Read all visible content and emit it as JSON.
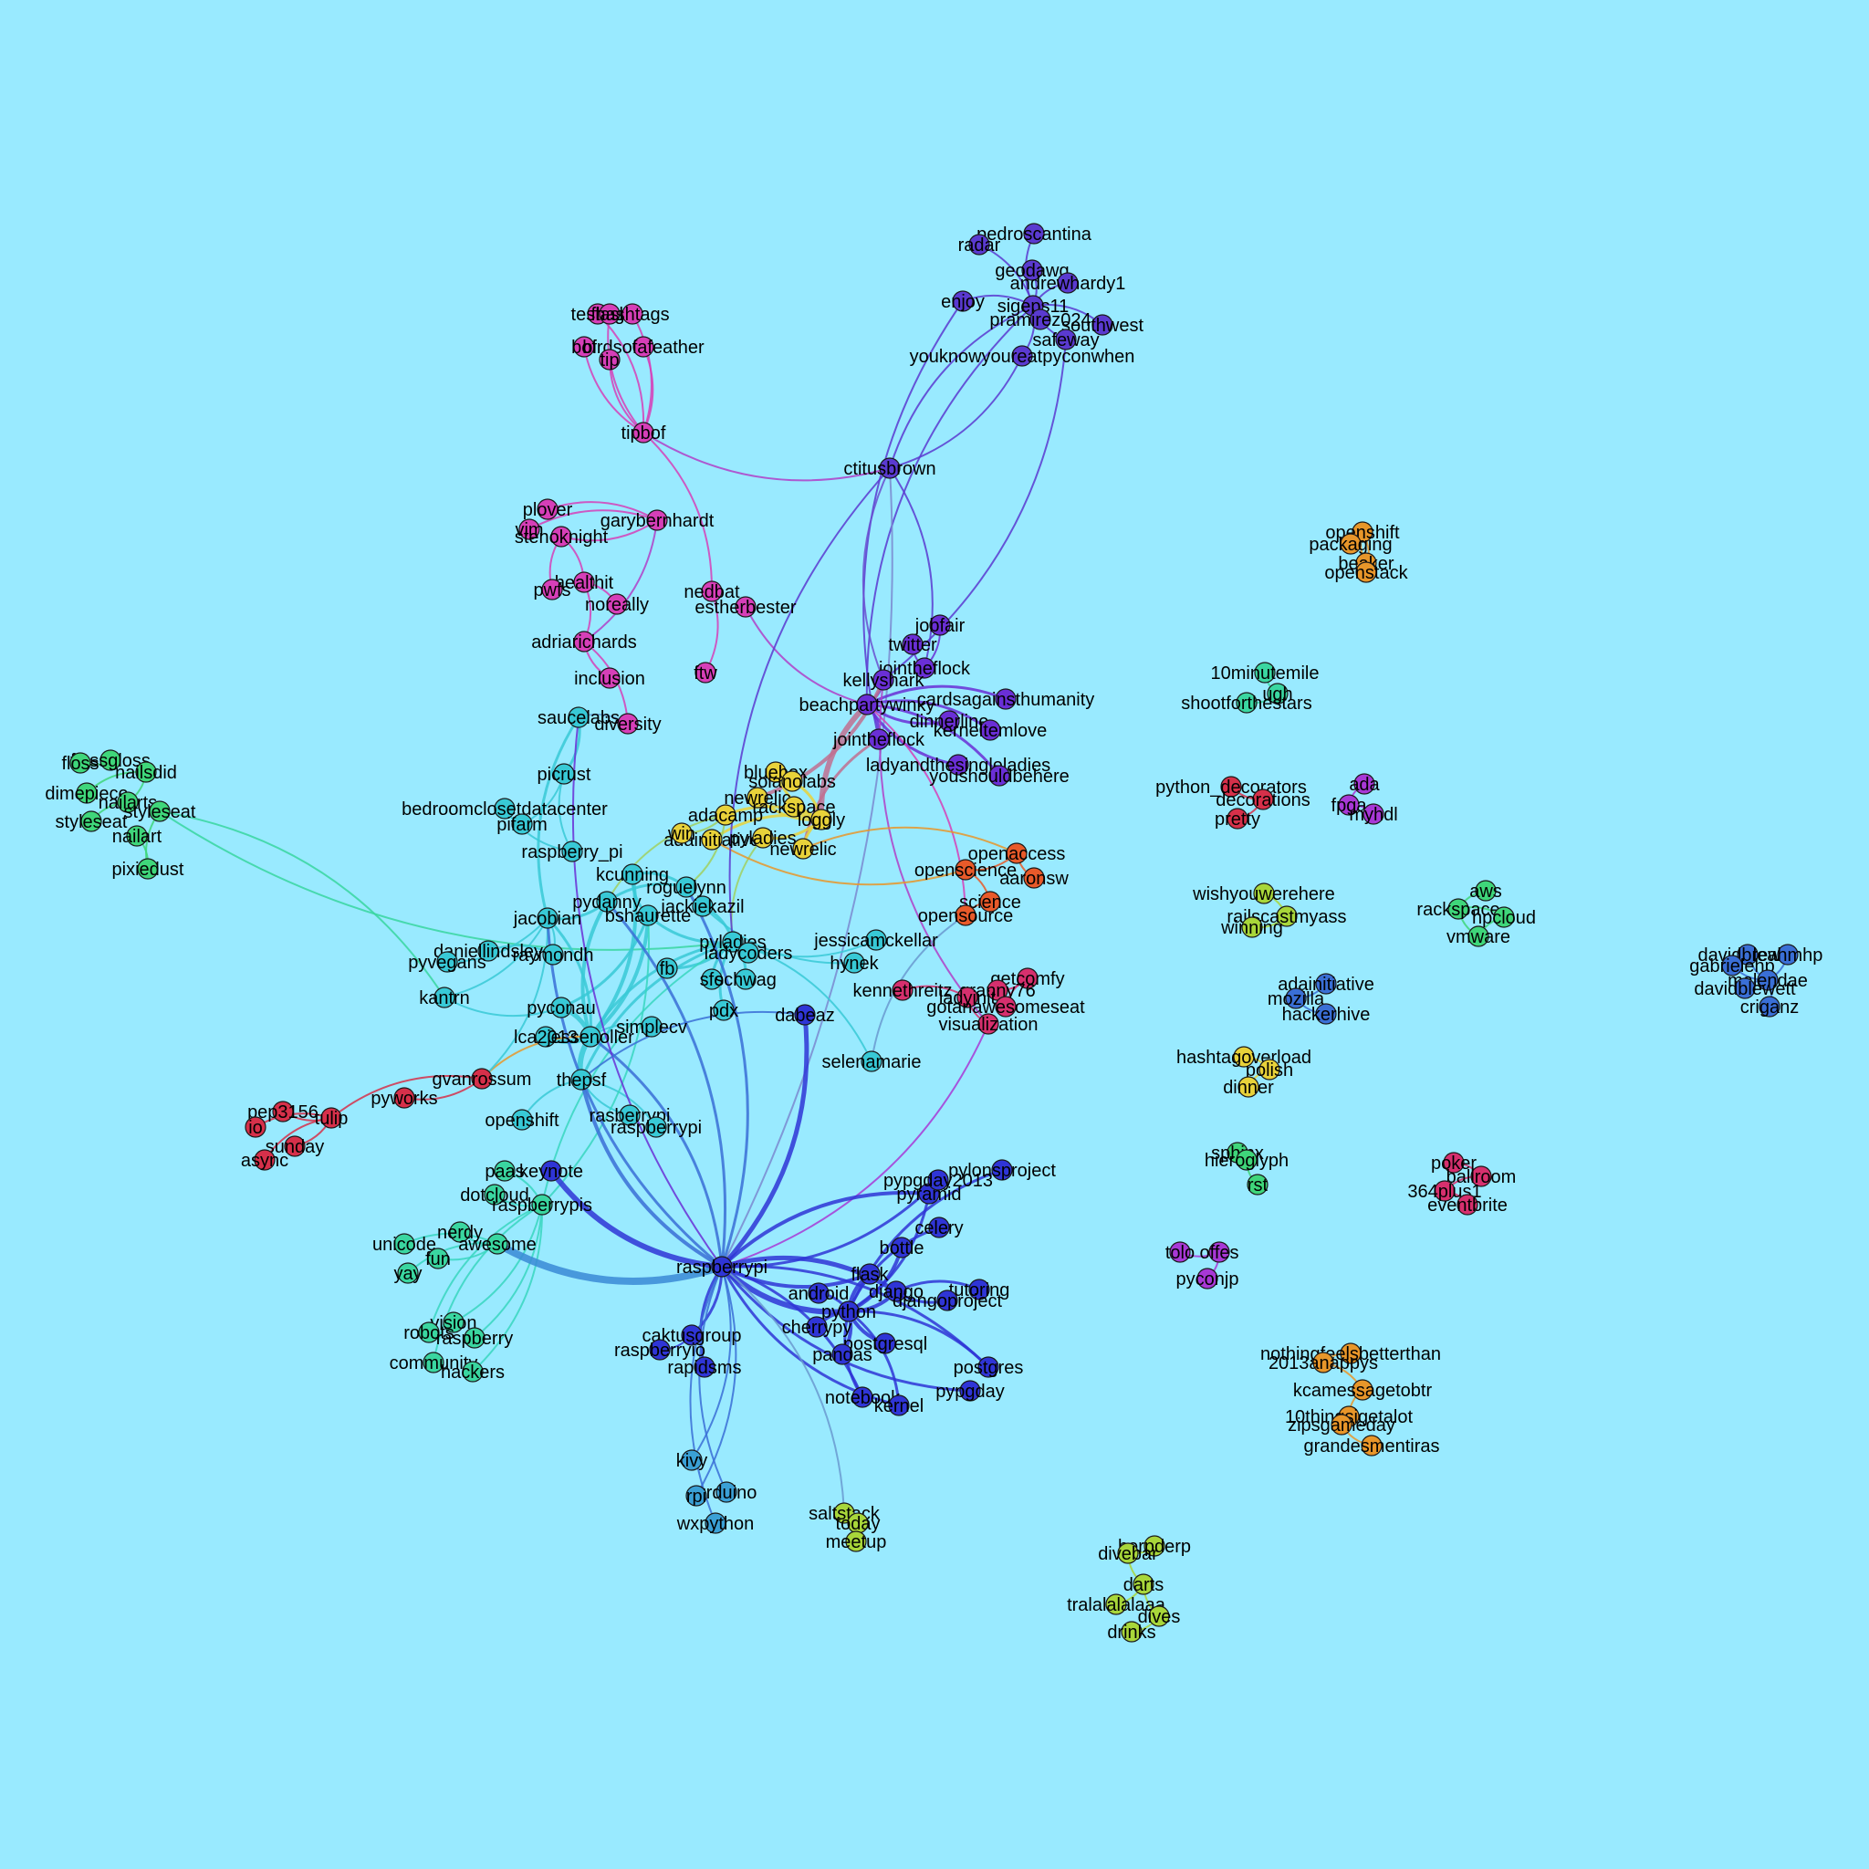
{
  "background": "#99eaff",
  "node_colors": {
    "pink": "#d63fb8",
    "purple": "#6a2fd6",
    "violet": "#5a3ad0",
    "yellow": "#e8d23a",
    "teal": "#38c9d6",
    "green": "#3fd67a",
    "red": "#d6304a",
    "blue": "#2f35d6",
    "lightblue": "#3aa0d6",
    "lime": "#a8d63a",
    "orange": "#e8962a",
    "magenta": "#a838d6",
    "crimson": "#d6306e",
    "midblue": "#3a6fd6",
    "orangered": "#e85a2a",
    "seafoam": "#3ad6a0"
  },
  "nodes": [
    {
      "id": "pedroscantina",
      "label": "pedroscantina",
      "c": "violet"
    },
    {
      "id": "radar",
      "label": "radar",
      "c": "violet"
    },
    {
      "id": "geodawg",
      "label": "geodawg",
      "c": "violet"
    },
    {
      "id": "andrewhardy1",
      "label": "andrewhardy1",
      "c": "violet"
    },
    {
      "id": "enjoy",
      "label": "enjoy",
      "c": "violet"
    },
    {
      "id": "sigeps11",
      "label": "sigeps11",
      "c": "violet"
    },
    {
      "id": "pramirez024",
      "label": "pramirez024",
      "c": "violet"
    },
    {
      "id": "southwest",
      "label": "southwest",
      "c": "violet"
    },
    {
      "id": "safeway",
      "label": "safeway",
      "c": "violet"
    },
    {
      "id": "youknowyoureatpyconwhen",
      "label": "youknowyoureatpyconwhen",
      "c": "violet"
    },
    {
      "id": "ctitusbrown",
      "label": "ctitusbrown",
      "c": "violet"
    },
    {
      "id": "testing",
      "label": "testing",
      "c": "pink"
    },
    {
      "id": "flask_p",
      "label": "flask",
      "c": "pink"
    },
    {
      "id": "hashtags",
      "label": "hashtags",
      "c": "pink"
    },
    {
      "id": "bof",
      "label": "bof",
      "c": "pink"
    },
    {
      "id": "birdsofafeather",
      "label": "birdsofafeather",
      "c": "pink"
    },
    {
      "id": "tip",
      "label": "tip",
      "c": "pink"
    },
    {
      "id": "tipbof",
      "label": "tipbof",
      "c": "pink"
    },
    {
      "id": "plover",
      "label": "plover",
      "c": "pink"
    },
    {
      "id": "garybernhardt",
      "label": "garybernhardt",
      "c": "pink"
    },
    {
      "id": "vim",
      "label": "vim",
      "c": "pink"
    },
    {
      "id": "stenoknight",
      "label": "stenoknight",
      "c": "pink"
    },
    {
      "id": "healthit",
      "label": "healthit",
      "c": "pink"
    },
    {
      "id": "pwfs",
      "label": "pwfs",
      "c": "pink"
    },
    {
      "id": "noreally",
      "label": "noreally",
      "c": "pink"
    },
    {
      "id": "nedbat",
      "label": "nedbat",
      "c": "pink"
    },
    {
      "id": "estherbester",
      "label": "estherbester",
      "c": "pink"
    },
    {
      "id": "adriarichards",
      "label": "adriarichards",
      "c": "pink"
    },
    {
      "id": "inclusion",
      "label": "inclusion",
      "c": "pink"
    },
    {
      "id": "ftw",
      "label": "ftw",
      "c": "pink"
    },
    {
      "id": "diversity",
      "label": "diversity",
      "c": "pink"
    },
    {
      "id": "jobfair",
      "label": "jobfair",
      "c": "purple"
    },
    {
      "id": "twitter",
      "label": "twitter",
      "c": "purple"
    },
    {
      "id": "jointheflock",
      "label": "jointheflock",
      "c": "purple"
    },
    {
      "id": "kellyshark",
      "label": "kellyshark",
      "c": "purple"
    },
    {
      "id": "cardsagainsthumanity",
      "label": "cardsagainsthumanity",
      "c": "purple"
    },
    {
      "id": "beachpartywinky",
      "label": "beachpartywinky",
      "c": "purple"
    },
    {
      "id": "dinnerline",
      "label": "dinnerline",
      "c": "purple"
    },
    {
      "id": "kerneltemlove",
      "label": "kerneltemlove",
      "c": "purple"
    },
    {
      "id": "jointheflock2",
      "label": "jointheflock",
      "c": "purple"
    },
    {
      "id": "ladyandthesingleladies",
      "label": "ladyandthesingleladies",
      "c": "purple"
    },
    {
      "id": "youshouldbehere",
      "label": "youshouldbehere",
      "c": "purple"
    },
    {
      "id": "bluebox",
      "label": "bluebox",
      "c": "yellow"
    },
    {
      "id": "solanolabs",
      "label": "solanolabs",
      "c": "yellow"
    },
    {
      "id": "newrelic",
      "label": "newrelic",
      "c": "yellow"
    },
    {
      "id": "adacamp",
      "label": "adacamp",
      "c": "yellow"
    },
    {
      "id": "rackspace",
      "label": "rackspace",
      "c": "yellow"
    },
    {
      "id": "loggly",
      "label": "loggly",
      "c": "yellow"
    },
    {
      "id": "adainitiative",
      "label": "adainitiative",
      "c": "yellow"
    },
    {
      "id": "pyladies_y",
      "label": "pyladies",
      "c": "yellow"
    },
    {
      "id": "newrelic2",
      "label": "newrelic",
      "c": "yellow"
    },
    {
      "id": "win",
      "label": "win",
      "c": "yellow"
    },
    {
      "id": "flossgloss",
      "label": "flossgloss",
      "c": "green"
    },
    {
      "id": "floss",
      "label": "floss",
      "c": "green"
    },
    {
      "id": "nailsdid",
      "label": "nailsdid",
      "c": "green"
    },
    {
      "id": "dimepiece",
      "label": "dimepiece",
      "c": "green"
    },
    {
      "id": "nailarts",
      "label": "nailarts",
      "c": "green"
    },
    {
      "id": "styleseat",
      "label": "styleseat",
      "c": "green"
    },
    {
      "id": "styleseat2",
      "label": "styleseat",
      "c": "green"
    },
    {
      "id": "nailart",
      "label": "nailart",
      "c": "green"
    },
    {
      "id": "pixiedust",
      "label": "pixiedust",
      "c": "green"
    },
    {
      "id": "saucelabs",
      "label": "saucelabs",
      "c": "teal"
    },
    {
      "id": "picrust",
      "label": "picrust",
      "c": "teal"
    },
    {
      "id": "bedroomclosetdatacenter",
      "label": "bedroomclosetdatacenter",
      "c": "teal"
    },
    {
      "id": "pifarm",
      "label": "pifarm",
      "c": "teal"
    },
    {
      "id": "raspberry_pi",
      "label": "raspberry_pi",
      "c": "teal"
    },
    {
      "id": "kcunning",
      "label": "kcunning",
      "c": "teal"
    },
    {
      "id": "roguelynn",
      "label": "roguelynn",
      "c": "teal"
    },
    {
      "id": "pydanny",
      "label": "pydanny",
      "c": "teal"
    },
    {
      "id": "bshaurette",
      "label": "bshaurette",
      "c": "teal"
    },
    {
      "id": "jackiekazil",
      "label": "jackiekazil",
      "c": "teal"
    },
    {
      "id": "jacobian",
      "label": "jacobian",
      "c": "teal"
    },
    {
      "id": "daniellindsley",
      "label": "daniellindsley",
      "c": "teal"
    },
    {
      "id": "raymondh",
      "label": "raymondh",
      "c": "teal"
    },
    {
      "id": "pyvegans",
      "label": "pyvegans",
      "c": "teal"
    },
    {
      "id": "pyladies",
      "label": "pyladies",
      "c": "teal"
    },
    {
      "id": "ladycoders",
      "label": "ladycoders",
      "c": "teal"
    },
    {
      "id": "fb",
      "label": "fb",
      "c": "teal"
    },
    {
      "id": "sfo",
      "label": "sfo",
      "c": "teal"
    },
    {
      "id": "schwag",
      "label": "schwag",
      "c": "teal"
    },
    {
      "id": "kantrn",
      "label": "kantrn",
      "c": "teal"
    },
    {
      "id": "pyconau",
      "label": "pyconau",
      "c": "teal"
    },
    {
      "id": "pdx",
      "label": "pdx",
      "c": "teal"
    },
    {
      "id": "lca2013",
      "label": "lca2013",
      "c": "teal"
    },
    {
      "id": "jessenoller",
      "label": "jessenoller",
      "c": "teal"
    },
    {
      "id": "simplecv",
      "label": "simplecv",
      "c": "teal"
    },
    {
      "id": "thepsf",
      "label": "thepsf",
      "c": "teal"
    },
    {
      "id": "hynek",
      "label": "hynek",
      "c": "teal"
    },
    {
      "id": "jessicamckellar",
      "label": "jessicamckellar",
      "c": "teal"
    },
    {
      "id": "selenamarie",
      "label": "selenamarie",
      "c": "teal"
    },
    {
      "id": "openshift_t",
      "label": "openshift",
      "c": "teal"
    },
    {
      "id": "rasberrypi",
      "label": "rasberrypi",
      "c": "teal"
    },
    {
      "id": "raspberrypi_t",
      "label": "raspberrypi",
      "c": "teal"
    },
    {
      "id": "paas",
      "label": "paas",
      "c": "seafoam"
    },
    {
      "id": "dotcloud",
      "label": "dotcloud",
      "c": "seafoam"
    },
    {
      "id": "raspberrypis",
      "label": "raspberrypis",
      "c": "seafoam"
    },
    {
      "id": "nerdy",
      "label": "nerdy",
      "c": "seafoam"
    },
    {
      "id": "unicode",
      "label": "unicode",
      "c": "seafoam"
    },
    {
      "id": "awesome",
      "label": "awesome",
      "c": "seafoam"
    },
    {
      "id": "fun",
      "label": "fun",
      "c": "seafoam"
    },
    {
      "id": "yay",
      "label": "yay",
      "c": "seafoam"
    },
    {
      "id": "vision",
      "label": "vision",
      "c": "seafoam"
    },
    {
      "id": "robots",
      "label": "robots",
      "c": "seafoam"
    },
    {
      "id": "raspberry",
      "label": "raspberry",
      "c": "seafoam"
    },
    {
      "id": "community",
      "label": "community",
      "c": "seafoam"
    },
    {
      "id": "hackers",
      "label": "hackers",
      "c": "seafoam"
    },
    {
      "id": "gvanrossum",
      "label": "gvanrossum",
      "c": "red"
    },
    {
      "id": "pyworks",
      "label": "pyworks",
      "c": "red"
    },
    {
      "id": "pep3156",
      "label": "pep3156",
      "c": "red"
    },
    {
      "id": "tulip",
      "label": "tulip",
      "c": "red"
    },
    {
      "id": "io",
      "label": "io",
      "c": "red"
    },
    {
      "id": "sunday",
      "label": "sunday",
      "c": "red"
    },
    {
      "id": "async",
      "label": "async",
      "c": "red"
    },
    {
      "id": "openaccess",
      "label": "openaccess",
      "c": "orangered"
    },
    {
      "id": "openscience",
      "label": "openscience",
      "c": "orangered"
    },
    {
      "id": "aaronsw",
      "label": "aaronsw",
      "c": "orangered"
    },
    {
      "id": "science",
      "label": "science",
      "c": "orangered"
    },
    {
      "id": "opensource",
      "label": "opensource",
      "c": "orangered"
    },
    {
      "id": "getcomfy",
      "label": "getcomfy",
      "c": "crimson"
    },
    {
      "id": "kennethreitz",
      "label": "kennethreitz",
      "c": "crimson"
    },
    {
      "id": "granny76",
      "label": "granny76",
      "c": "crimson"
    },
    {
      "id": "ladyinit",
      "label": "ladyinit",
      "c": "crimson"
    },
    {
      "id": "gotanawesomeseat",
      "label": "gotanawesomeseat",
      "c": "crimson"
    },
    {
      "id": "visualization",
      "label": "visualization",
      "c": "crimson"
    },
    {
      "id": "dabeaz",
      "label": "dabeaz",
      "c": "blue"
    },
    {
      "id": "keynote",
      "label": "keynote",
      "c": "blue"
    },
    {
      "id": "raspberrypi",
      "label": "raspberrypi",
      "c": "blue"
    },
    {
      "id": "pyramid",
      "label": "pyramid",
      "c": "blue"
    },
    {
      "id": "pypgday2013",
      "label": "pypgday2013",
      "c": "blue"
    },
    {
      "id": "pylonsproject",
      "label": "pylonsproject",
      "c": "blue"
    },
    {
      "id": "celery",
      "label": "celery",
      "c": "blue"
    },
    {
      "id": "bottle",
      "label": "bottle",
      "c": "blue"
    },
    {
      "id": "flask",
      "label": "flask",
      "c": "blue"
    },
    {
      "id": "android",
      "label": "android",
      "c": "blue"
    },
    {
      "id": "django",
      "label": "django",
      "c": "blue"
    },
    {
      "id": "tutoring",
      "label": "tutoring",
      "c": "blue"
    },
    {
      "id": "djangoproject",
      "label": "djangoproject",
      "c": "blue"
    },
    {
      "id": "python",
      "label": "python",
      "c": "blue"
    },
    {
      "id": "cherrypy",
      "label": "cherrypy",
      "c": "blue"
    },
    {
      "id": "caktusgroup",
      "label": "caktusgroup",
      "c": "blue"
    },
    {
      "id": "raspberryio",
      "label": "raspberryio",
      "c": "blue"
    },
    {
      "id": "postgresql",
      "label": "postgresql",
      "c": "blue"
    },
    {
      "id": "pandas",
      "label": "pandas",
      "c": "blue"
    },
    {
      "id": "rapidsms",
      "label": "rapidsms",
      "c": "blue"
    },
    {
      "id": "postgres",
      "label": "postgres",
      "c": "blue"
    },
    {
      "id": "pypgday",
      "label": "pypgday",
      "c": "blue"
    },
    {
      "id": "notebook",
      "label": "notebook",
      "c": "blue"
    },
    {
      "id": "kernel",
      "label": "kernel",
      "c": "blue"
    },
    {
      "id": "kivy",
      "label": "kivy",
      "c": "lightblue"
    },
    {
      "id": "arduino",
      "label": "arduino",
      "c": "lightblue"
    },
    {
      "id": "rpi",
      "label": "rpi",
      "c": "lightblue"
    },
    {
      "id": "wxpython",
      "label": "wxpython",
      "c": "lightblue"
    },
    {
      "id": "saltstack",
      "label": "saltstack",
      "c": "lime"
    },
    {
      "id": "today",
      "label": "today",
      "c": "lime"
    },
    {
      "id": "meetup",
      "label": "meetup",
      "c": "lime"
    },
    {
      "id": "openshift",
      "label": "openshift",
      "c": "orange"
    },
    {
      "id": "packaging",
      "label": "packaging",
      "c": "orange"
    },
    {
      "id": "beaker",
      "label": "beaker",
      "c": "orange"
    },
    {
      "id": "openstack",
      "label": "openstack",
      "c": "orange"
    },
    {
      "id": "10minutemile",
      "label": "10minutemile",
      "c": "seafoam"
    },
    {
      "id": "ugh",
      "label": "ugh",
      "c": "seafoam"
    },
    {
      "id": "shootforthestars",
      "label": "shootforthestars",
      "c": "seafoam"
    },
    {
      "id": "python_decorators",
      "label": "python_decorators",
      "c": "red"
    },
    {
      "id": "decorations",
      "label": "decorations",
      "c": "red"
    },
    {
      "id": "pretty",
      "label": "pretty",
      "c": "red"
    },
    {
      "id": "ada",
      "label": "ada",
      "c": "magenta"
    },
    {
      "id": "fpga",
      "label": "fpga",
      "c": "magenta"
    },
    {
      "id": "myhdl",
      "label": "myhdl",
      "c": "magenta"
    },
    {
      "id": "wishyouwerehere",
      "label": "wishyouwerehere",
      "c": "lime"
    },
    {
      "id": "railscastmyass",
      "label": "railscastmyass",
      "c": "lime"
    },
    {
      "id": "winning",
      "label": "winning",
      "c": "lime"
    },
    {
      "id": "aws",
      "label": "aws",
      "c": "green"
    },
    {
      "id": "rackspace2",
      "label": "rackspace",
      "c": "green"
    },
    {
      "id": "hpcloud",
      "label": "hpcloud",
      "c": "green"
    },
    {
      "id": "vmware",
      "label": "vmware",
      "c": "green"
    },
    {
      "id": "davidbrewer",
      "label": "davidbrewer",
      "c": "midblue"
    },
    {
      "id": "leahmhp",
      "label": "leahmhp",
      "c": "midblue"
    },
    {
      "id": "gabrielehp",
      "label": "gabrielehp",
      "c": "midblue"
    },
    {
      "id": "malendae",
      "label": "malendae",
      "c": "midblue"
    },
    {
      "id": "davidblewett",
      "label": "davidblewett",
      "c": "midblue"
    },
    {
      "id": "criganz",
      "label": "criganz",
      "c": "midblue"
    },
    {
      "id": "adainitiative2",
      "label": "adainitiative",
      "c": "midblue"
    },
    {
      "id": "mozilla",
      "label": "mozilla",
      "c": "midblue"
    },
    {
      "id": "hackerhive",
      "label": "hackerhive",
      "c": "midblue"
    },
    {
      "id": "hashtagoverload",
      "label": "hashtagoverload",
      "c": "yellow"
    },
    {
      "id": "polish",
      "label": "polish",
      "c": "yellow"
    },
    {
      "id": "dinner",
      "label": "dinner",
      "c": "yellow"
    },
    {
      "id": "sphinx",
      "label": "sphinx",
      "c": "green"
    },
    {
      "id": "hieroglyph",
      "label": "hieroglyph",
      "c": "green"
    },
    {
      "id": "rst",
      "label": "rst",
      "c": "green"
    },
    {
      "id": "poker",
      "label": "poker",
      "c": "crimson"
    },
    {
      "id": "ballroom",
      "label": "ballroom",
      "c": "crimson"
    },
    {
      "id": "364plus1",
      "label": "364plus1",
      "c": "crimson"
    },
    {
      "id": "eventbrite",
      "label": "eventbrite",
      "c": "crimson"
    },
    {
      "id": "toloffes",
      "label": "tolo",
      "c": "magenta"
    },
    {
      "id": "offes",
      "label": "offes",
      "c": "magenta"
    },
    {
      "id": "pyconjp",
      "label": "pyconjp",
      "c": "magenta"
    },
    {
      "id": "nothingfeelsbetterthan",
      "label": "nothingfeelsbetterthan",
      "c": "orange"
    },
    {
      "id": "2013anappys",
      "label": "2013anappys",
      "c": "orange"
    },
    {
      "id": "kcamessagetobtr",
      "label": "kcamessagetobtr",
      "c": "orange"
    },
    {
      "id": "10thingsigetalot",
      "label": "10thingsigetalot",
      "c": "orange"
    },
    {
      "id": "zipsgameday",
      "label": "zipsgameday",
      "c": "orange"
    },
    {
      "id": "grandesmentiras",
      "label": "grandesmentiras",
      "c": "orange"
    },
    {
      "id": "herpderp",
      "label": "herpderp",
      "c": "lime"
    },
    {
      "id": "divebar",
      "label": "divebar",
      "c": "lime"
    },
    {
      "id": "darts",
      "label": "darts",
      "c": "lime"
    },
    {
      "id": "tralalalalaaa",
      "label": "tralalalalaaa",
      "c": "lime"
    },
    {
      "id": "dives",
      "label": "dives",
      "c": "lime"
    },
    {
      "id": "drinks",
      "label": "drinks",
      "c": "lime"
    }
  ]
}
